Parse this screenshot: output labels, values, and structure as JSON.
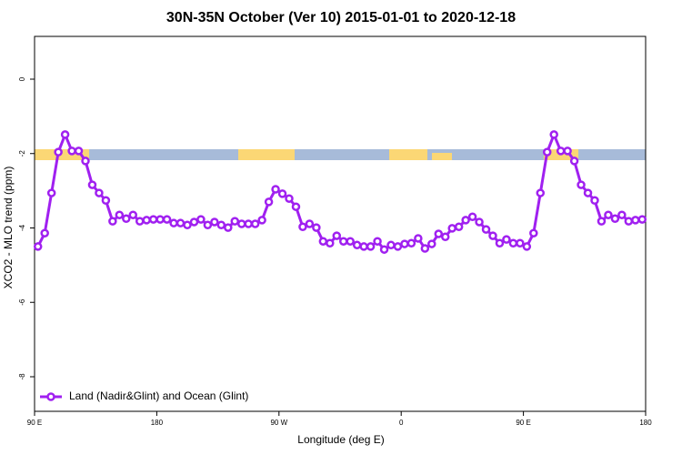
{
  "chart_data": {
    "type": "line",
    "title": "30N-35N October (Ver 10)   2015-01-01 to 2020-12-18",
    "x_label": "Longitude (deg E)",
    "y_label": "XCO2 - MLO trend (ppm)",
    "xlim": [
      90,
      540
    ],
    "xticks": [
      {
        "value": 90,
        "label": "90 E"
      },
      180,
      {
        "value": 270,
        "label": "90 W"
      },
      {
        "value": 360,
        "label": "0"
      },
      {
        "value": 450,
        "label": "90 E"
      },
      {
        "value": 540,
        "label": "180"
      }
    ],
    "ylim": [
      -8.93,
      1.15
    ],
    "yticks": [
      0,
      -2,
      -4,
      -6,
      -8
    ],
    "legend_position": "bottom-left",
    "x": [
      92.5,
      97.5,
      102.5,
      107.5,
      112.5,
      117.5,
      122.5,
      127.5,
      132.5,
      137.5,
      142.5,
      147.5,
      152.5,
      157.5,
      162.5,
      167.5,
      172.5,
      177.5,
      182.5,
      187.5,
      192.5,
      197.5,
      202.5,
      207.5,
      212.5,
      217.5,
      222.5,
      227.5,
      232.5,
      237.5,
      242.5,
      247.5,
      252.5,
      257.5,
      262.5,
      267.5,
      272.5,
      277.5,
      282.5,
      287.5,
      292.5,
      297.5,
      302.5,
      307.5,
      312.5,
      317.5,
      322.5,
      327.5,
      332.5,
      337.5,
      342.5,
      347.5,
      352.5,
      357.5,
      362.5,
      367.5,
      372.5,
      377.5,
      382.5,
      387.5,
      392.5,
      397.5,
      402.5,
      407.5,
      412.5,
      417.5,
      422.5,
      427.5,
      432.5,
      437.5,
      442.5,
      447.5,
      452.5,
      457.5,
      462.5,
      467.5,
      472.5,
      477.5,
      482.5,
      487.5,
      492.5,
      497.5,
      502.5,
      507.5,
      512.5,
      517.5,
      522.5,
      527.5,
      532.5,
      537.5
    ],
    "series": [
      {
        "name": "Land (Nadir&Glint) and Ocean (Glint)",
        "color": "#a020f0",
        "values": [
          -4.5,
          -4.14,
          -3.06,
          -1.96,
          -1.49,
          -1.93,
          -1.93,
          -2.2,
          -2.84,
          -3.06,
          -3.26,
          -3.82,
          -3.65,
          -3.75,
          -3.65,
          -3.82,
          -3.79,
          -3.77,
          -3.77,
          -3.77,
          -3.87,
          -3.87,
          -3.92,
          -3.84,
          -3.77,
          -3.92,
          -3.84,
          -3.92,
          -3.99,
          -3.82,
          -3.89,
          -3.89,
          -3.89,
          -3.79,
          -3.3,
          -2.96,
          -3.08,
          -3.21,
          -3.43,
          -3.97,
          -3.89,
          -3.99,
          -4.36,
          -4.41,
          -4.21,
          -4.36,
          -4.36,
          -4.46,
          -4.5,
          -4.5,
          -4.36,
          -4.58,
          -4.46,
          -4.5,
          -4.43,
          -4.41,
          -4.28,
          -4.55,
          -4.43,
          -4.16,
          -4.24,
          -4.01,
          -3.97,
          -3.79,
          -3.7,
          -3.84,
          -4.04,
          -4.21,
          -4.41,
          -4.31,
          -4.41,
          -4.41,
          -4.5,
          -4.14,
          -3.06,
          -1.96,
          -1.49,
          -1.93,
          -1.93,
          -2.2,
          -2.84,
          -3.06,
          -3.26,
          -3.82,
          -3.65,
          -3.75,
          -3.65,
          -3.82,
          -3.79,
          -3.77
        ]
      }
    ]
  }
}
